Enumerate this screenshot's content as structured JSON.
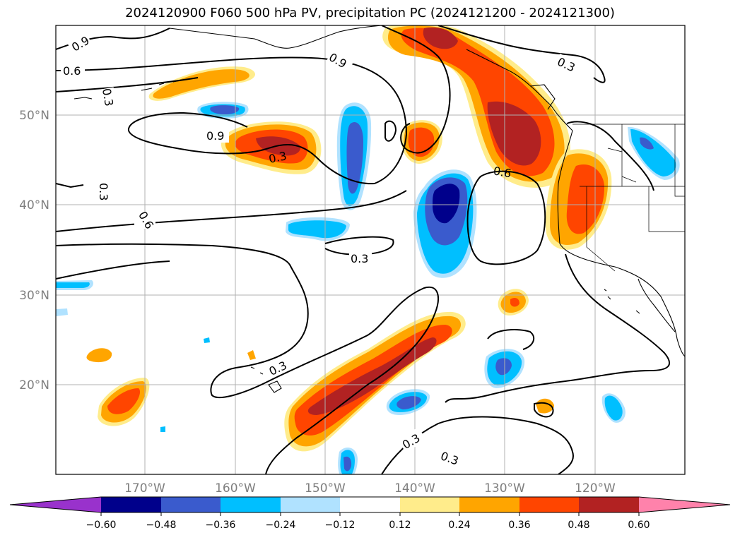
{
  "title": "2024120900 F060 500 hPa PV, precipitation PC (2024121200 - 2024121300)",
  "lat_labels": [
    "50°N",
    "40°N",
    "30°N",
    "20°N"
  ],
  "lon_labels": [
    "170°W",
    "160°W",
    "150°W",
    "140°W",
    "130°W",
    "120°W"
  ],
  "contour_labels": [
    "0.9",
    "0.6",
    "0.3",
    "0.9",
    "0.3",
    "0.3",
    "0.6",
    "0.3",
    "0.9",
    "0.6",
    "0.3",
    "0.3",
    "0.3",
    "0.3"
  ],
  "colorbar": {
    "ticks": [
      "−0.60",
      "−0.48",
      "−0.36",
      "−0.24",
      "−0.12",
      "0.12",
      "0.24",
      "0.36",
      "0.48",
      "0.60"
    ],
    "colors": [
      "#9932cc",
      "#00008b",
      "#3a5bcd",
      "#00bfff",
      "#b0e2ff",
      "#ffffff",
      "#ffec8b",
      "#ffa500",
      "#ff4500",
      "#b22222",
      "#ff82ab"
    ]
  },
  "palette": {
    "neg_strong": "#00008b",
    "neg_mid": "#3a5bcd",
    "neg_light": "#00bfff",
    "neg_faint": "#b0e2ff",
    "pos_faint": "#ffec8b",
    "pos_light": "#ffa500",
    "pos_mid": "#ff4500",
    "pos_strong": "#b22222"
  },
  "chart_data": {
    "type": "map",
    "projection": "lat-lon",
    "lon_range": [
      "180°W",
      "110°W"
    ],
    "lat_range": [
      "10°N",
      "60°N"
    ],
    "contour_field": "500 hPa PV",
    "contour_levels": [
      0.3,
      0.6,
      0.9
    ],
    "shaded_field": "precipitation PC",
    "shading_levels": [
      -0.6,
      -0.48,
      -0.36,
      -0.24,
      -0.12,
      0.12,
      0.24,
      0.36,
      0.48,
      0.6
    ],
    "grid": true
  }
}
